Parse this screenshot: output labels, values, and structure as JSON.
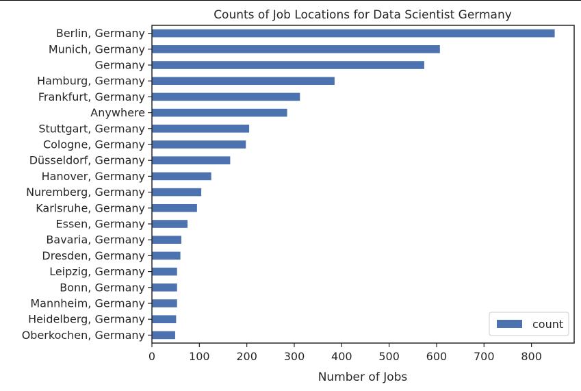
{
  "chart_data": {
    "type": "bar",
    "orientation": "horizontal",
    "title": "Counts of Job Locations for Data Scientist Germany",
    "xlabel": "Number of Jobs",
    "ylabel": "",
    "xlim": [
      0,
      890
    ],
    "xticks": [
      0,
      100,
      200,
      300,
      400,
      500,
      600,
      700,
      800
    ],
    "grid": false,
    "legend_position": "lower-right",
    "bar_color": "#4c72b0",
    "categories": [
      "Berlin, Germany",
      "Munich, Germany",
      "Germany",
      "Hamburg, Germany",
      "Frankfurt, Germany",
      "Anywhere",
      "Stuttgart, Germany",
      "Cologne, Germany",
      "Düsseldorf, Germany",
      "Hanover, Germany",
      "Nuremberg, Germany",
      "Karlsruhe, Germany",
      "Essen, Germany",
      "Bavaria, Germany",
      "Dresden, Germany",
      "Leipzig, Germany",
      "Bonn, Germany",
      "Mannheim, Germany",
      "Heidelberg, Germany",
      "Oberkochen, Germany"
    ],
    "series": [
      {
        "name": "count",
        "values": [
          849,
          607,
          574,
          385,
          312,
          285,
          205,
          198,
          165,
          125,
          104,
          95,
          75,
          62,
          60,
          53,
          53,
          53,
          51,
          49
        ]
      }
    ]
  }
}
